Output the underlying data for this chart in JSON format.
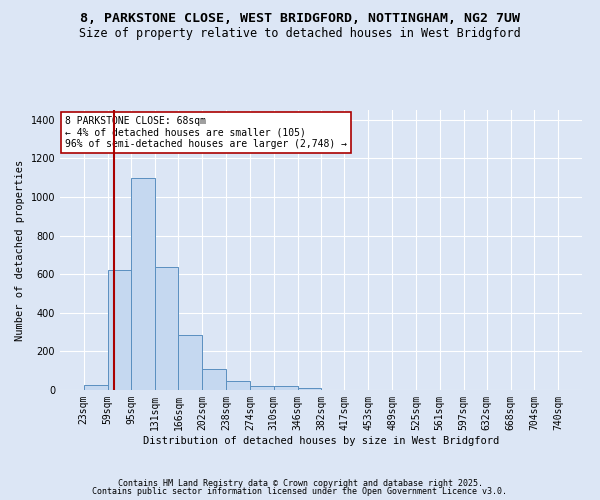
{
  "title1": "8, PARKSTONE CLOSE, WEST BRIDGFORD, NOTTINGHAM, NG2 7UW",
  "title2": "Size of property relative to detached houses in West Bridgford",
  "xlabel": "Distribution of detached houses by size in West Bridgford",
  "ylabel": "Number of detached properties",
  "bin_edges": [
    23,
    59,
    95,
    131,
    166,
    202,
    238,
    274,
    310,
    346,
    382,
    417,
    453,
    489,
    525,
    561,
    597,
    632,
    668,
    704,
    740
  ],
  "bar_heights": [
    25,
    620,
    1100,
    635,
    285,
    110,
    45,
    20,
    20,
    10,
    0,
    0,
    0,
    0,
    0,
    0,
    0,
    0,
    0,
    0
  ],
  "bar_color": "#c5d8f0",
  "bar_edge_color": "#5a8fc0",
  "background_color": "#dce6f5",
  "grid_color": "#ffffff",
  "property_size": 68,
  "red_line_color": "#aa0000",
  "annotation_line1": "8 PARKSTONE CLOSE: 68sqm",
  "annotation_line2": "← 4% of detached houses are smaller (105)",
  "annotation_line3": "96% of semi-detached houses are larger (2,748) →",
  "annotation_box_color": "#ffffff",
  "annotation_box_edge": "#aa0000",
  "ylim": [
    0,
    1450
  ],
  "yticks": [
    0,
    200,
    400,
    600,
    800,
    1000,
    1200,
    1400
  ],
  "footer1": "Contains HM Land Registry data © Crown copyright and database right 2025.",
  "footer2": "Contains public sector information licensed under the Open Government Licence v3.0.",
  "title1_fontsize": 9.5,
  "title2_fontsize": 8.5,
  "axis_label_fontsize": 7.5,
  "tick_fontsize": 7,
  "annotation_fontsize": 7,
  "footer_fontsize": 6
}
